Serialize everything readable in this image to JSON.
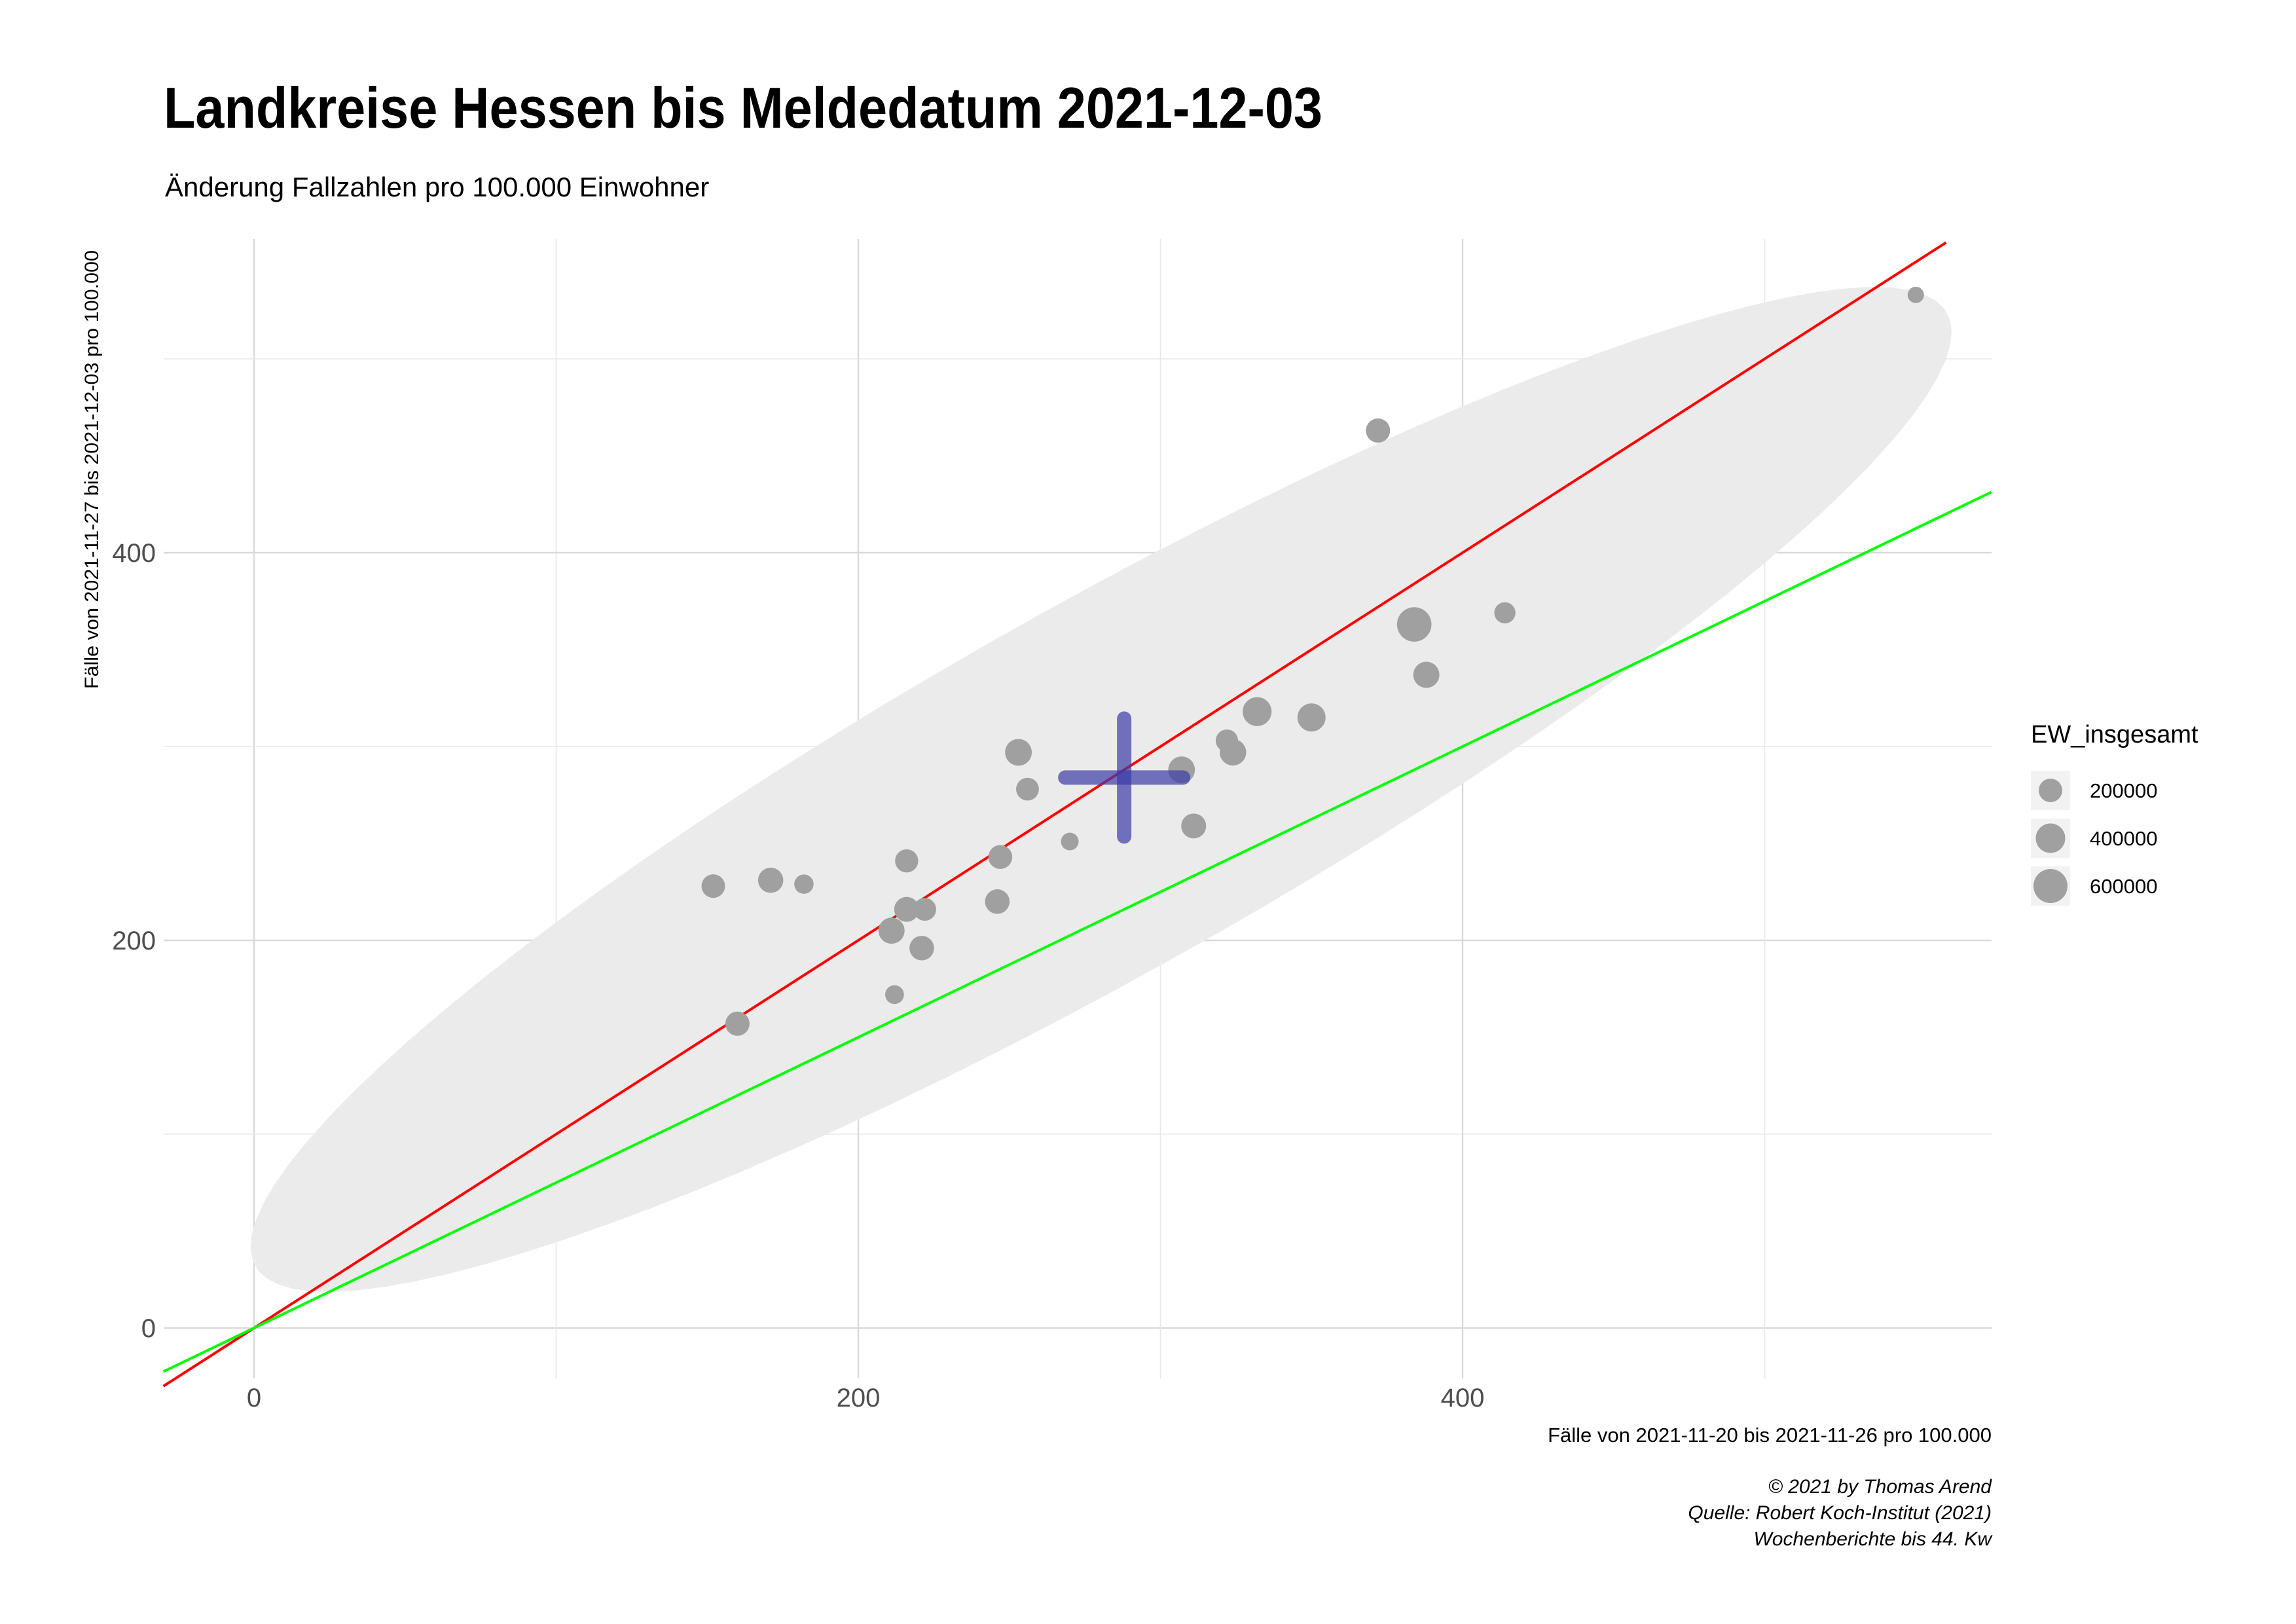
{
  "chart_data": {
    "type": "scatter",
    "title": "Landkreise Hessen bis Meldedatum 2021-12-03",
    "subtitle": "Änderung Fallzahlen pro 100.000 Einwohner",
    "xlabel": "Fälle von 2021-11-20 bis 2021-11-26 pro 100.000",
    "ylabel": "Fälle von 2021-11-27 bis 2021-12-03 pro 100.000",
    "xlim": [
      -30,
      575
    ],
    "ylim": [
      -25,
      560
    ],
    "x_ticks": [
      0,
      200,
      400
    ],
    "y_ticks": [
      0,
      200,
      400
    ],
    "grid": true,
    "legend_position": "right",
    "legend": {
      "title": "EW_insgesamt",
      "items": [
        {
          "label": "200000",
          "value": 200000
        },
        {
          "label": "400000",
          "value": 400000
        },
        {
          "label": "600000",
          "value": 600000
        }
      ]
    },
    "series": [
      {
        "points": [
          {
            "x": 152,
            "y": 228,
            "size": 200000
          },
          {
            "x": 171,
            "y": 231,
            "size": 250000
          },
          {
            "x": 182,
            "y": 229,
            "size": 100000
          },
          {
            "x": 160,
            "y": 157,
            "size": 220000
          },
          {
            "x": 211,
            "y": 205,
            "size": 280000
          },
          {
            "x": 216,
            "y": 216,
            "size": 240000
          },
          {
            "x": 222,
            "y": 216,
            "size": 180000
          },
          {
            "x": 221,
            "y": 196,
            "size": 230000
          },
          {
            "x": 212,
            "y": 172,
            "size": 90000
          },
          {
            "x": 216,
            "y": 241,
            "size": 190000
          },
          {
            "x": 246,
            "y": 220,
            "size": 230000
          },
          {
            "x": 247,
            "y": 243,
            "size": 210000
          },
          {
            "x": 253,
            "y": 297,
            "size": 300000
          },
          {
            "x": 256,
            "y": 278,
            "size": 180000
          },
          {
            "x": 270,
            "y": 251,
            "size": 70000
          },
          {
            "x": 307,
            "y": 288,
            "size": 300000
          },
          {
            "x": 311,
            "y": 259,
            "size": 240000
          },
          {
            "x": 322,
            "y": 303,
            "size": 170000
          },
          {
            "x": 324,
            "y": 297,
            "size": 290000
          },
          {
            "x": 332,
            "y": 318,
            "size": 380000
          },
          {
            "x": 350,
            "y": 315,
            "size": 350000
          },
          {
            "x": 372,
            "y": 463,
            "size": 220000
          },
          {
            "x": 384,
            "y": 363,
            "size": 620000
          },
          {
            "x": 388,
            "y": 337,
            "size": 280000
          },
          {
            "x": 414,
            "y": 369,
            "size": 140000
          },
          {
            "x": 550,
            "y": 533,
            "size": 50000
          }
        ]
      }
    ],
    "mean": {
      "x": 288,
      "y": 284
    },
    "reference_lines": [
      {
        "slope": 1,
        "intercept": 0,
        "color": "#ff0000"
      },
      {
        "slope": 0.75,
        "intercept": 0,
        "color": "#00ff00"
      }
    ],
    "ellipse_color": "#ebebeb",
    "point_color": "#a0a0a0",
    "mean_color": "#3b3ba8"
  },
  "caption": {
    "line1": "© 2021 by Thomas Arend",
    "line2": "Quelle: Robert Koch-Institut (2021)",
    "line3": "Wochenberichte bis 44. Kw"
  }
}
